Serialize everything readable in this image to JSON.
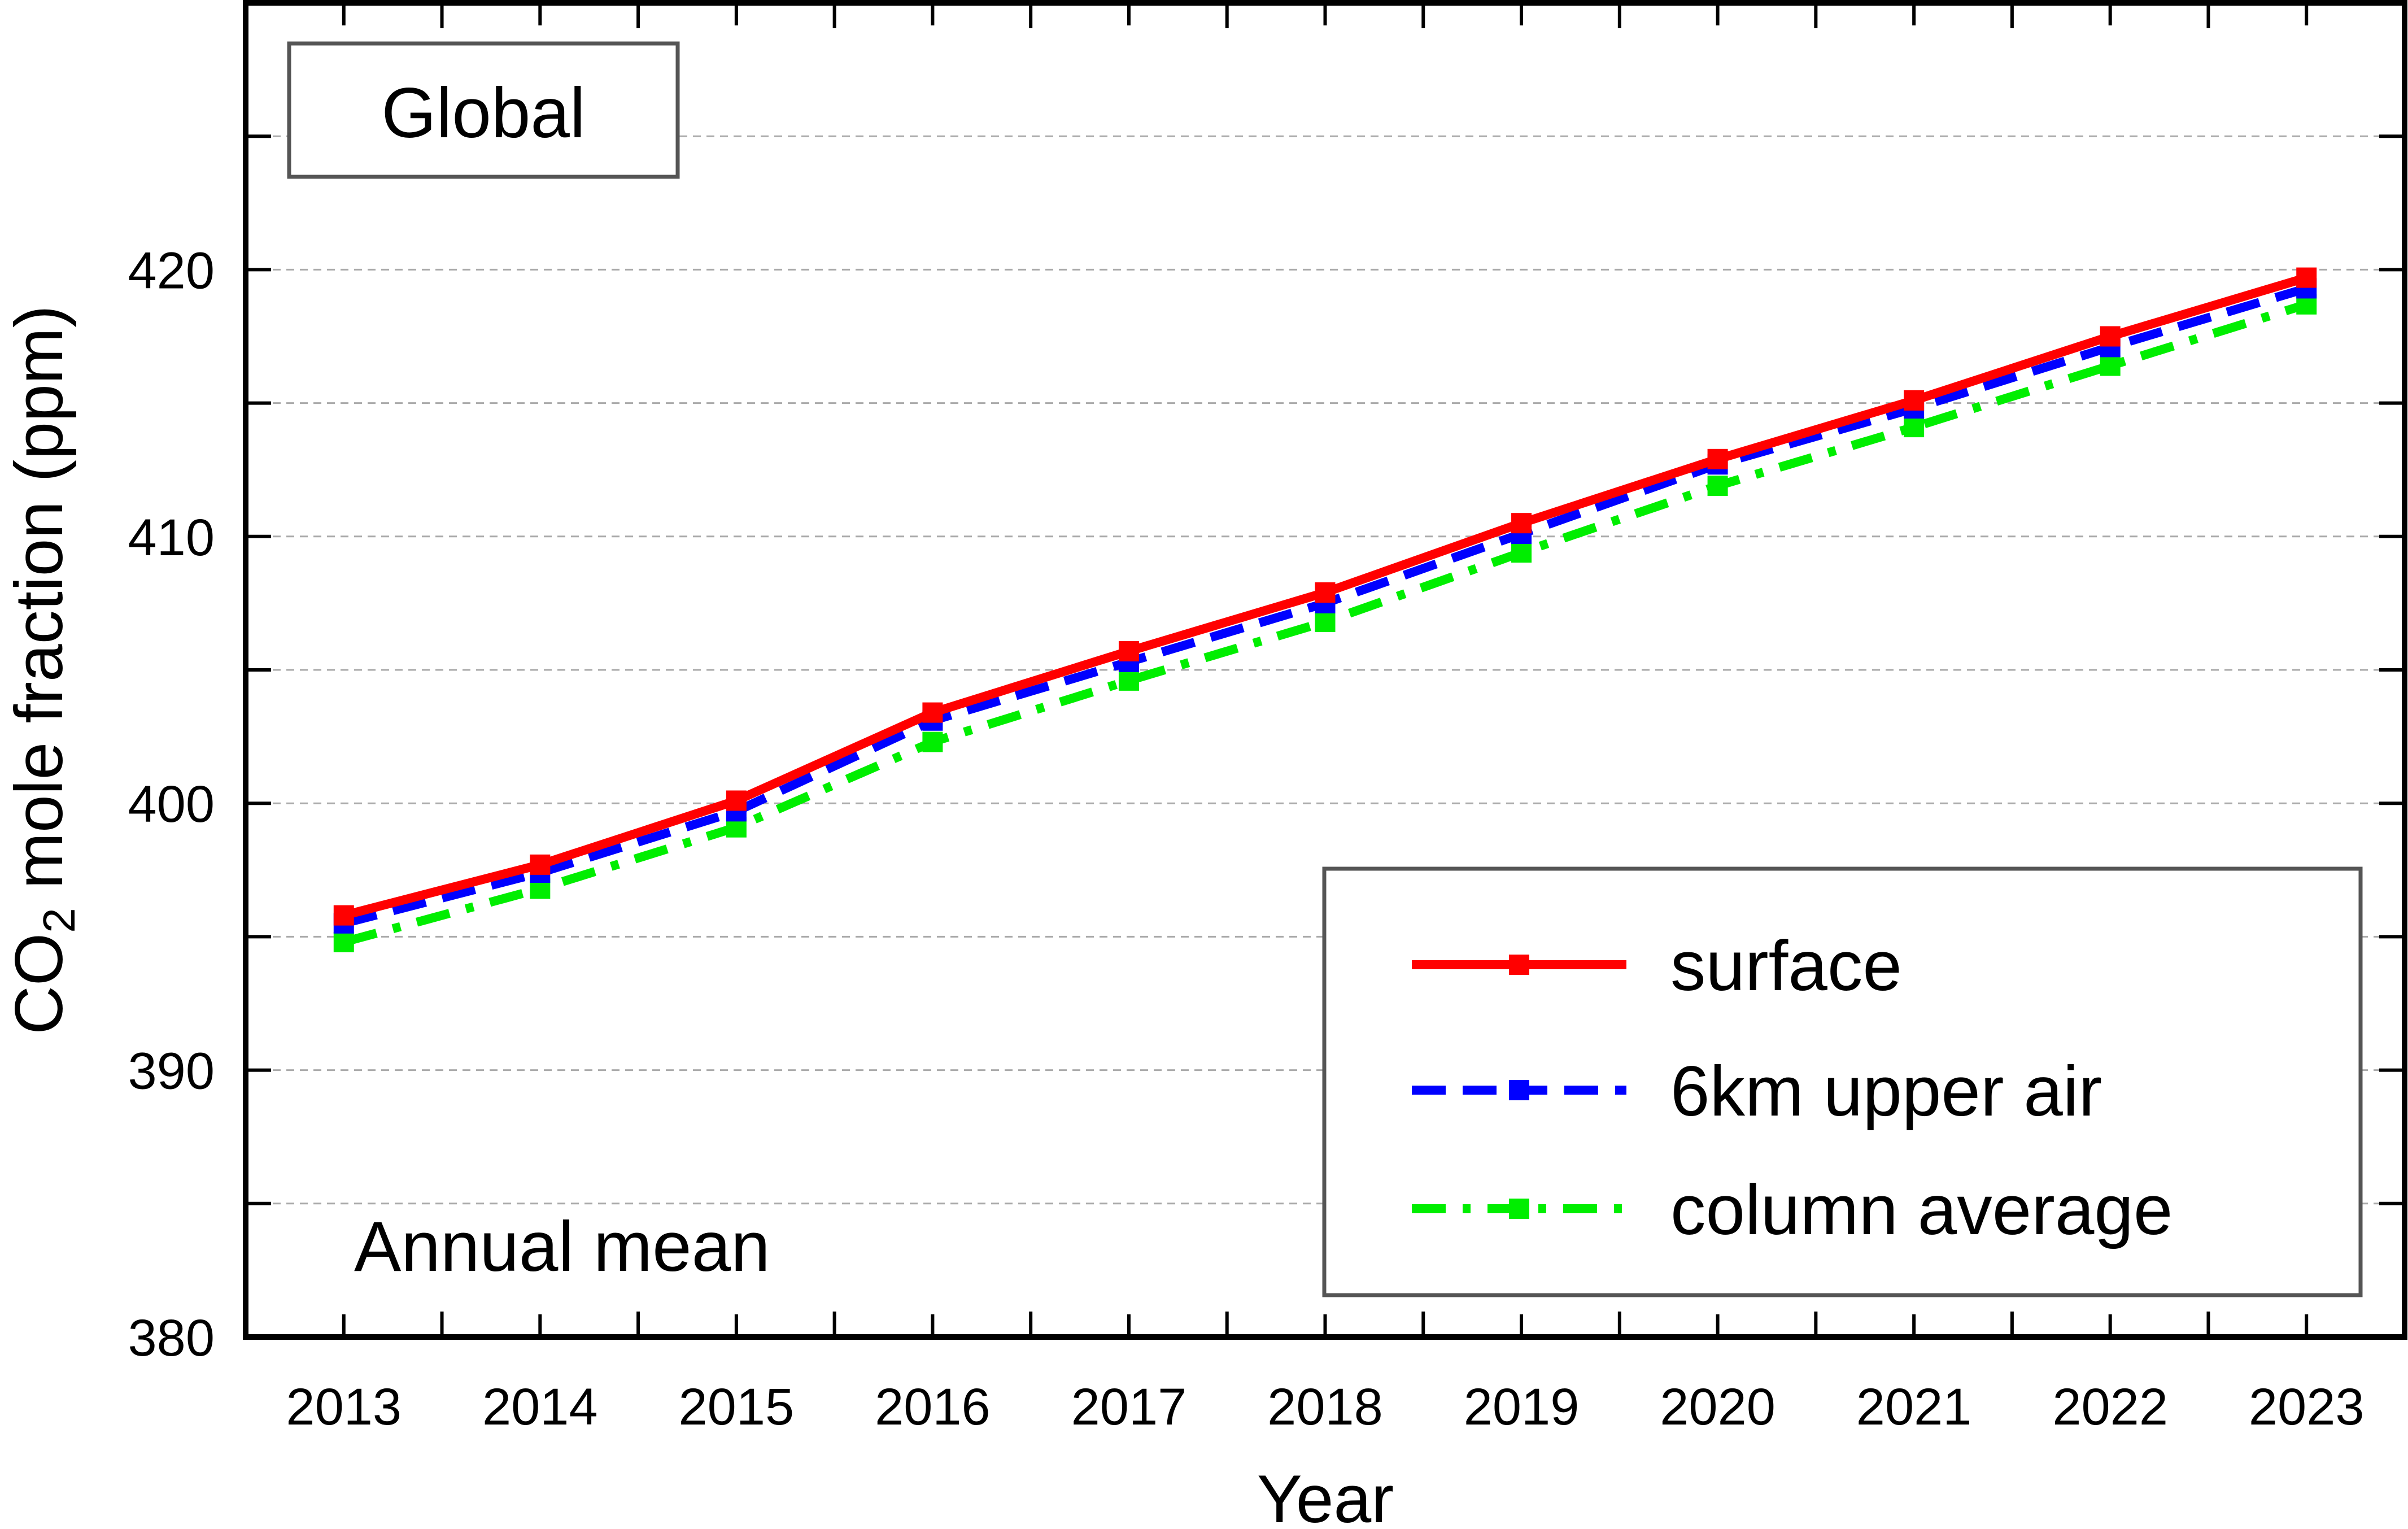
{
  "chart_data": {
    "type": "line",
    "title": "",
    "region_label": "Global",
    "annotation": "Annual mean",
    "xlabel": "Year",
    "ylabel": {
      "pre": "CO",
      "sub": "2",
      "post": " mole fraction (ppm)"
    },
    "x": [
      2013,
      2014,
      2015,
      2016,
      2017,
      2018,
      2019,
      2020,
      2021,
      2022,
      2023
    ],
    "xlim": [
      2012.5,
      2023.5
    ],
    "ylim": [
      380,
      430
    ],
    "yticks_labeled": [
      380,
      390,
      400,
      410,
      420
    ],
    "grid": true,
    "legend_position": "bottom-right",
    "series": [
      {
        "name": "surface",
        "color": "#ff0000",
        "style": "solid",
        "values": [
          395.8,
          397.7,
          400.1,
          403.4,
          405.7,
          407.9,
          410.5,
          412.9,
          415.1,
          417.5,
          419.7
        ]
      },
      {
        "name": "6km upper air",
        "color": "#0000ff",
        "style": "dash",
        "values": [
          395.5,
          397.4,
          399.7,
          403.1,
          405.3,
          407.5,
          410.1,
          412.7,
          414.8,
          417.1,
          419.3
        ]
      },
      {
        "name": "column average",
        "color": "#00ee00",
        "style": "dashdot",
        "values": [
          394.8,
          396.8,
          399.1,
          402.3,
          404.6,
          406.8,
          409.4,
          411.9,
          414.1,
          416.4,
          418.7
        ]
      }
    ]
  }
}
